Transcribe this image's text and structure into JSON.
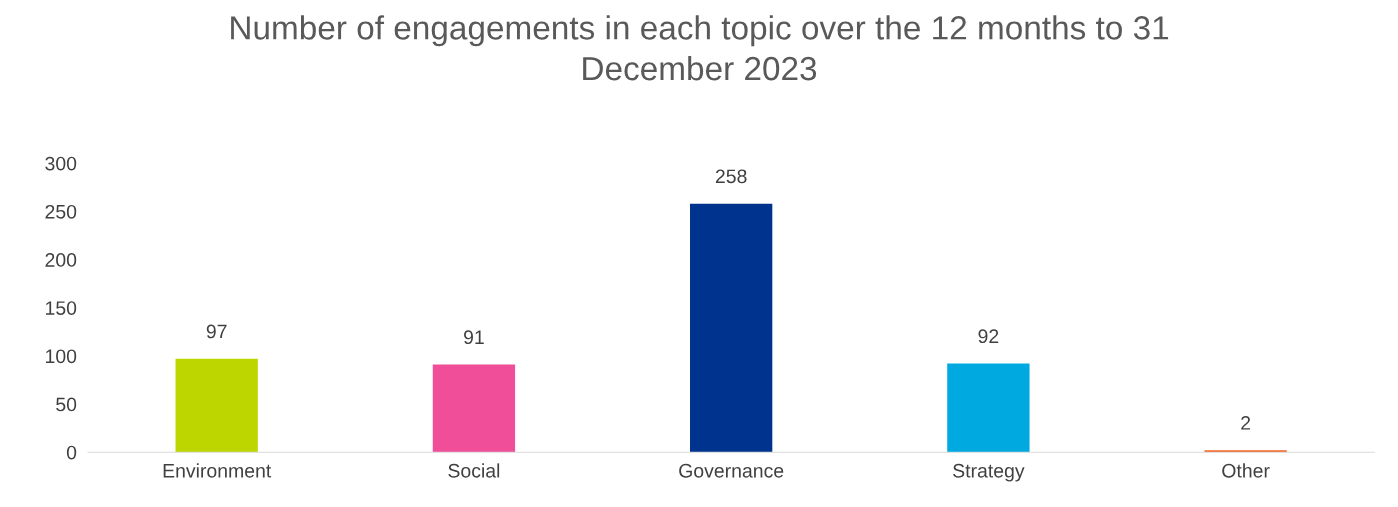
{
  "chart_data": {
    "type": "bar",
    "title": "Number of engagements in each topic over the 12 months to 31\nDecember 2023",
    "categories": [
      "Environment",
      "Social",
      "Governance",
      "Strategy",
      "Other"
    ],
    "values": [
      97,
      91,
      258,
      92,
      2
    ],
    "colors": [
      "#bed600",
      "#f04e98",
      "#00338d",
      "#00a9e0",
      "#f26522"
    ],
    "ylim": [
      0,
      300
    ],
    "yticks": [
      0,
      50,
      100,
      150,
      200,
      250,
      300
    ],
    "grid": false,
    "data_labels": true
  }
}
